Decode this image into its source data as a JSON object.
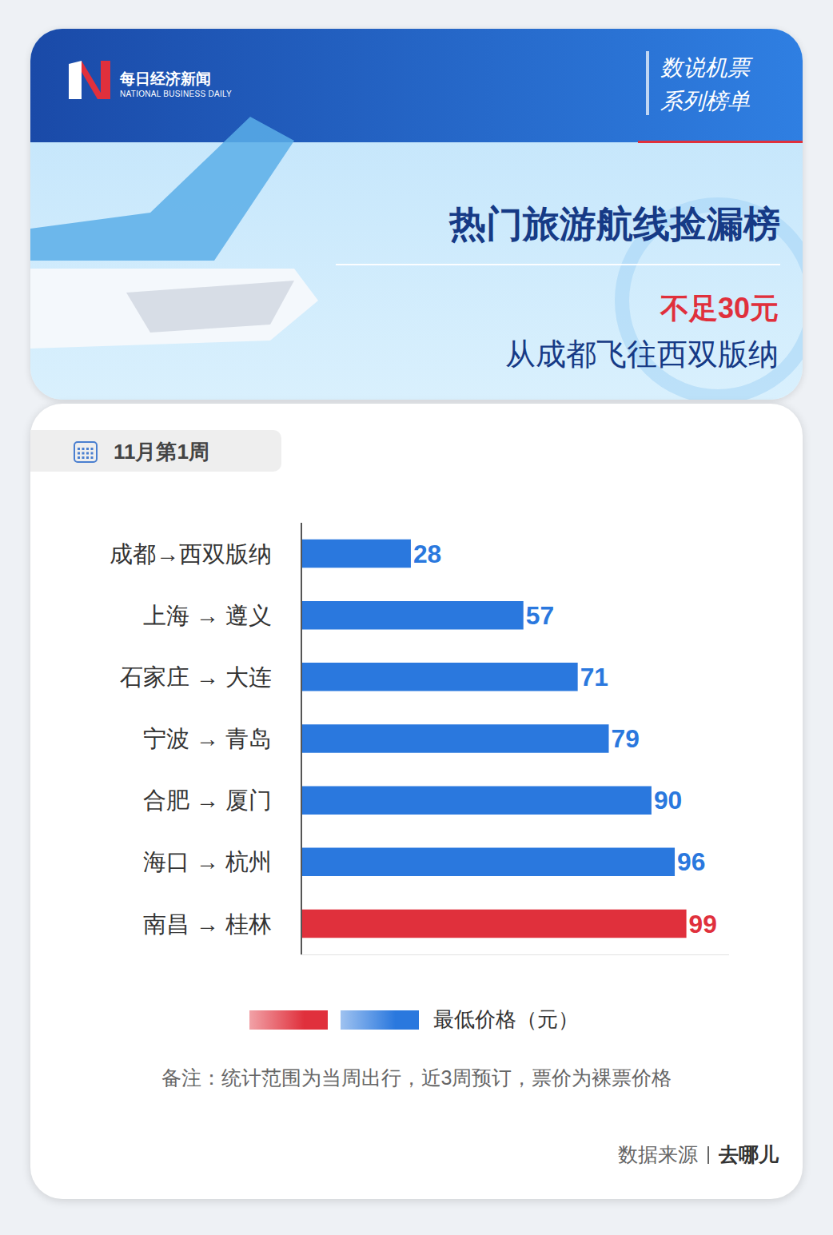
{
  "header": {
    "brand": "每日经济新闻",
    "brand_en": "NATIONAL BUSINESS DAILY",
    "series_tag": [
      "数说机票",
      "系列榜单"
    ]
  },
  "chart_data": {
    "type": "bar",
    "orientation": "horizontal",
    "title": "热门旅游航线捡漏榜",
    "highlight": "不足30元",
    "subtitle": "从成都飞往西双版纳",
    "period": "11月第1周",
    "categories": [
      "成都→西双版纳",
      "上海 → 遵义",
      "石家庄 → 大连",
      "宁波 → 青岛",
      "合肥 → 厦门",
      "海口 → 杭州",
      "南昌 → 桂林"
    ],
    "series": [
      {
        "name": "最低价格（元）",
        "values": [
          28,
          57,
          71,
          79,
          90,
          96,
          99
        ],
        "colors": [
          "#2a78de",
          "#2a78de",
          "#2a78de",
          "#2a78de",
          "#2a78de",
          "#2a78de",
          "#e0303c"
        ]
      }
    ],
    "xlim": [
      0,
      110
    ],
    "data_labels": true,
    "tick_labels": "y",
    "grid": false,
    "legend": "bottom",
    "note": "备注：统计范围为当周出行，近3周预订，票价为裸票价格",
    "source": {
      "label": "数据来源",
      "name": "去哪儿"
    }
  }
}
